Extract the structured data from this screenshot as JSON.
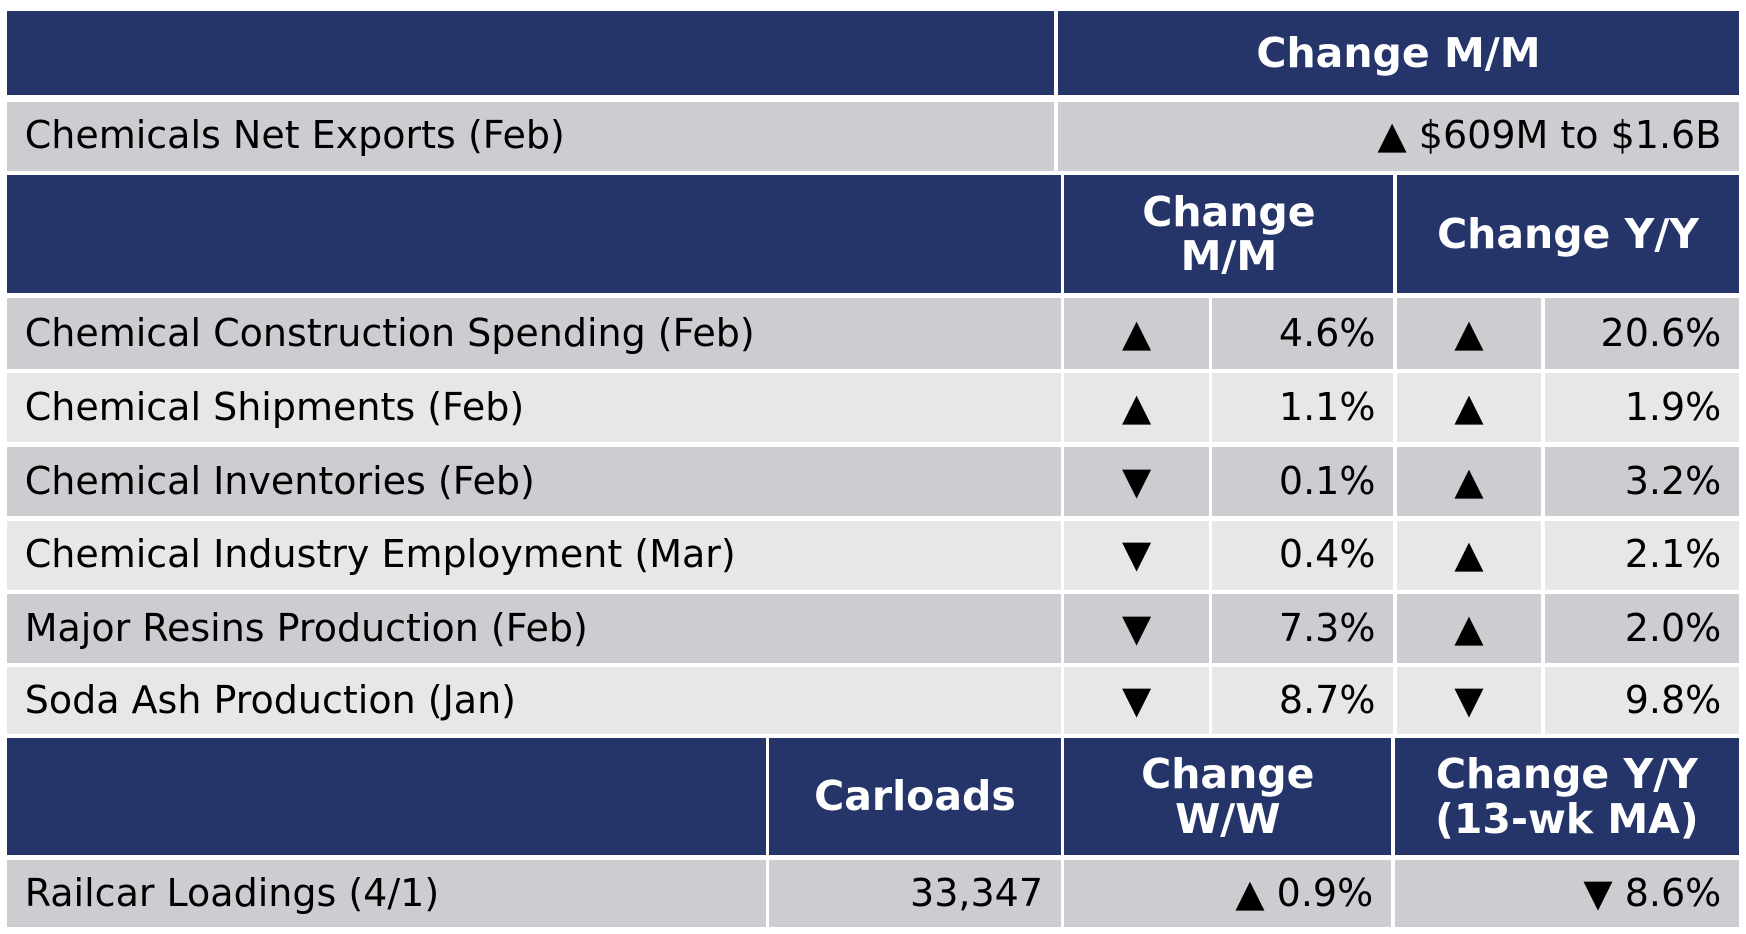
{
  "header": {
    "change_mm": "Change M/M"
  },
  "net_exports": {
    "label": "Chemicals Net Exports (Feb)",
    "value": "▲ $609M to $1.6B"
  },
  "indicators": {
    "headers": [
      [
        "Change",
        "M/M"
      ],
      [
        "Change Y/Y"
      ]
    ],
    "rows": [
      {
        "label": "Chemical Construction Spending (Feb)",
        "mm_dir": "▲",
        "mm": "4.6%",
        "yy_dir": "▲",
        "yy": "20.6%"
      },
      {
        "label": "Chemical Shipments (Feb)",
        "mm_dir": "▲",
        "mm": "1.1%",
        "yy_dir": "▲",
        "yy": "1.9%"
      },
      {
        "label": "Chemical Inventories (Feb)",
        "mm_dir": "▼",
        "mm": "0.1%",
        "yy_dir": "▲",
        "yy": "3.2%"
      },
      {
        "label": "Chemical Industry Employment (Mar)",
        "mm_dir": "▼",
        "mm": "0.4%",
        "yy_dir": "▲",
        "yy": "2.1%"
      },
      {
        "label": "Major Resins Production (Feb)",
        "mm_dir": "▼",
        "mm": "7.3%",
        "yy_dir": "▲",
        "yy": "2.0%"
      },
      {
        "label": "Soda Ash Production (Jan)",
        "mm_dir": "▼",
        "mm": "8.7%",
        "yy_dir": "▼",
        "yy": "9.8%"
      }
    ]
  },
  "railcar": {
    "headers": [
      [
        "Carloads"
      ],
      [
        "Change",
        "W/W"
      ],
      [
        "Change Y/Y",
        "(13-wk MA)"
      ]
    ],
    "label": "Railcar Loadings (4/1)",
    "carloads": "33,347",
    "ww": "▲ 0.9%",
    "yy": "▼ 8.6%"
  }
}
